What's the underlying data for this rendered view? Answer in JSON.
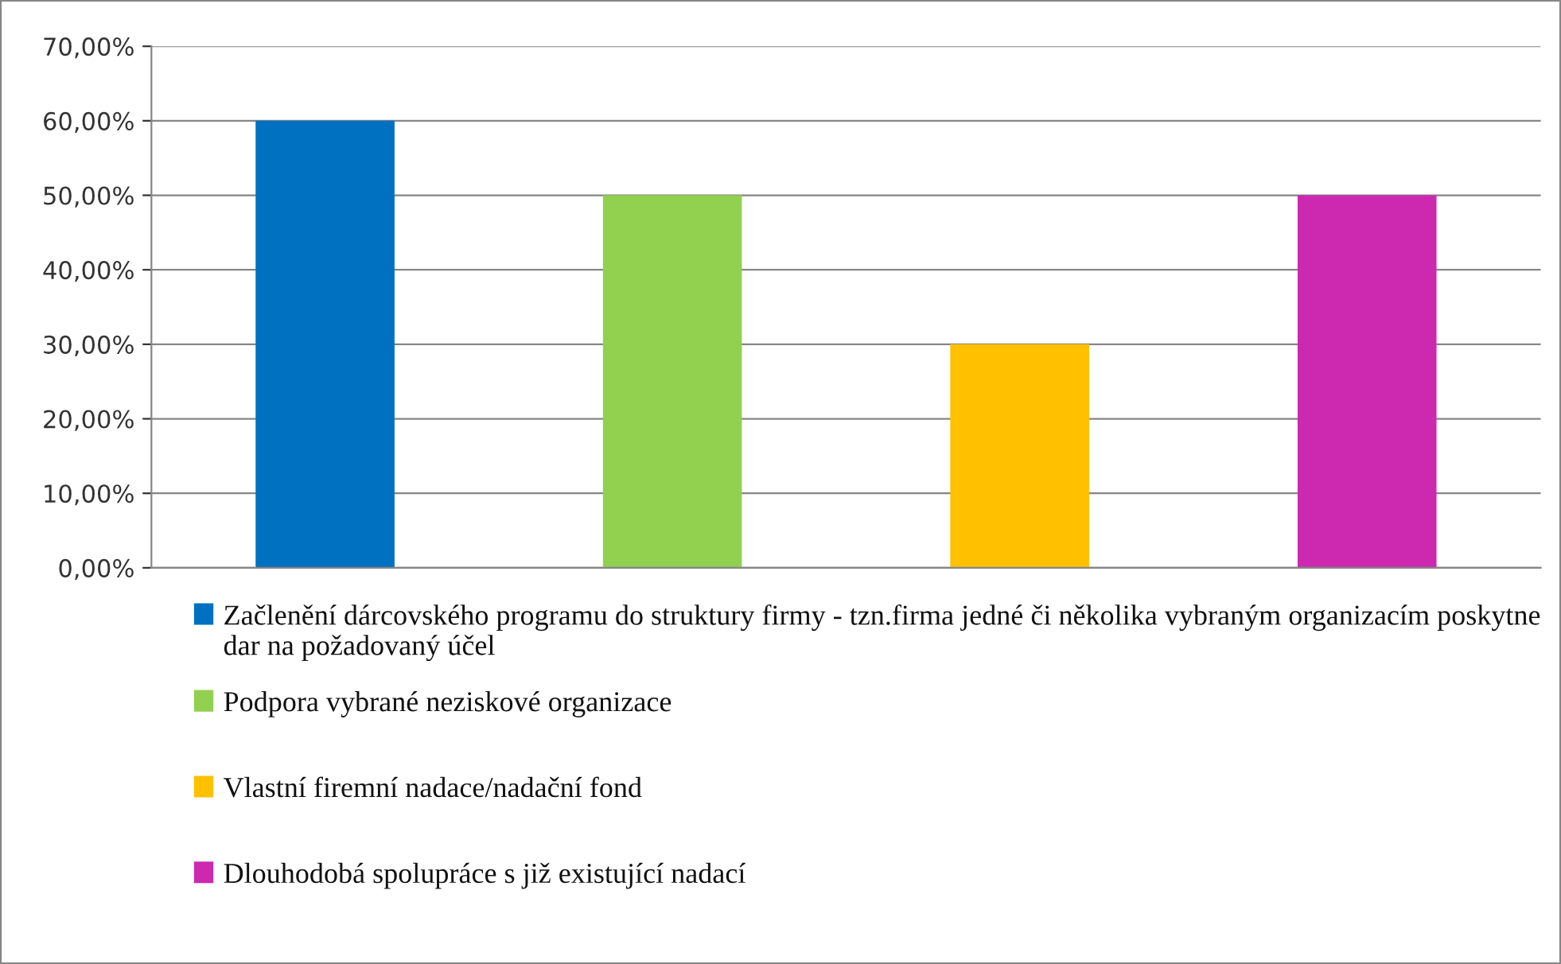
{
  "chart_data": {
    "type": "bar",
    "categories": [
      null,
      null,
      null,
      null
    ],
    "series": [
      {
        "name": "Začlenění dárcovského programu do struktury firmy - tzn.firma jedné či několika vybraným organizacím poskytne dar na požadovaný účel",
        "color": "#0070c0",
        "values": [
          60,
          null,
          null,
          null
        ]
      },
      {
        "name": "Podpora vybrané neziskové organizace",
        "color": "#92d050",
        "values": [
          null,
          50,
          null,
          null
        ]
      },
      {
        "name": "Vlastní firemní nadace/nadační fond",
        "color": "#ffc000",
        "values": [
          null,
          null,
          30,
          null
        ]
      },
      {
        "name": "Dlouhodobá spolupráce s již existující nadací",
        "color": "#cc29b0",
        "values": [
          null,
          null,
          null,
          50
        ]
      }
    ],
    "ylim": [
      0,
      70
    ],
    "yticks": [
      {
        "value": 0,
        "label": "0,00%"
      },
      {
        "value": 10,
        "label": "10,00%"
      },
      {
        "value": 20,
        "label": "20,00%"
      },
      {
        "value": 30,
        "label": "30,00%"
      },
      {
        "value": 40,
        "label": "40,00%"
      },
      {
        "value": 50,
        "label": "50,00%"
      },
      {
        "value": 60,
        "label": "60,00%"
      },
      {
        "value": 70,
        "label": "70,00%"
      }
    ],
    "grid": "y",
    "legend": "bottom"
  }
}
